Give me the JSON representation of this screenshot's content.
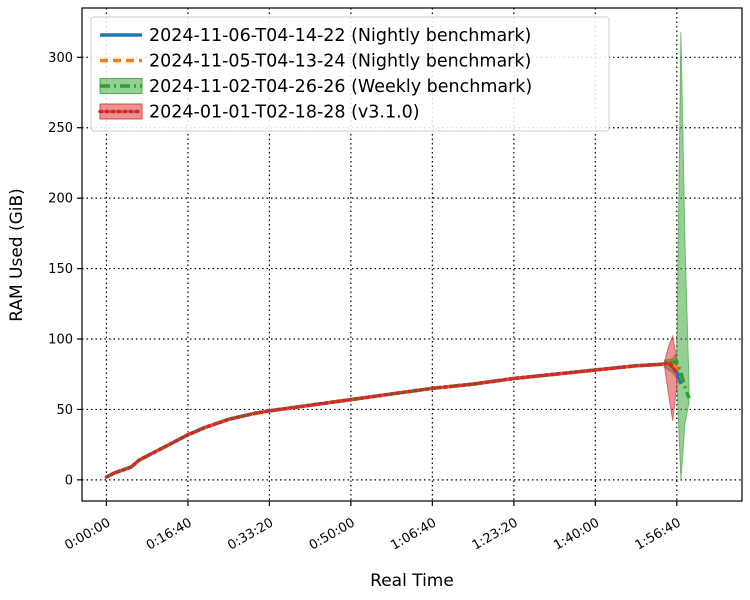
{
  "chart_data": {
    "type": "line",
    "title": "",
    "xlabel": "Real Time",
    "ylabel": "RAM Used (GiB)",
    "x_unit": "elapsed time (h:mm:ss)",
    "xlim": [
      "-0:05:00",
      "2:10:00"
    ],
    "ylim": [
      -15,
      335
    ],
    "x_ticks": [
      "0:00:00",
      "0:16:40",
      "0:33:20",
      "0:50:00",
      "1:06:40",
      "1:23:20",
      "1:40:00",
      "1:56:40"
    ],
    "y_ticks": [
      0,
      50,
      100,
      150,
      200,
      250,
      300
    ],
    "grid": true,
    "legend_position": "top-left",
    "series": [
      {
        "name": "2024-11-06-T04-14-22 (Nightly benchmark)",
        "color": "#1f77b4",
        "style": "solid",
        "x": [
          "0:00:00",
          "0:01:40",
          "0:05:00",
          "0:06:40",
          "0:08:20",
          "0:10:00",
          "0:13:20",
          "0:16:40",
          "0:20:00",
          "0:25:00",
          "0:30:00",
          "0:33:20",
          "0:41:40",
          "0:50:00",
          "0:58:20",
          "1:06:40",
          "1:15:00",
          "1:23:20",
          "1:31:40",
          "1:40:00",
          "1:48:20",
          "1:53:20",
          "1:55:00",
          "1:56:40",
          "1:57:30"
        ],
        "y": [
          2,
          5,
          9,
          14,
          17,
          20,
          26,
          32,
          37,
          43,
          47,
          49,
          53,
          57,
          61,
          65,
          68,
          72,
          75,
          78,
          81,
          82,
          83,
          77,
          68
        ]
      },
      {
        "name": "2024-11-05-T04-13-24 (Nightly benchmark)",
        "color": "#ff7f0e",
        "style": "dashed",
        "x": [
          "0:00:00",
          "0:01:40",
          "0:05:00",
          "0:06:40",
          "0:08:20",
          "0:10:00",
          "0:13:20",
          "0:16:40",
          "0:20:00",
          "0:25:00",
          "0:30:00",
          "0:33:20",
          "0:41:40",
          "0:50:00",
          "0:58:20",
          "1:06:40",
          "1:15:00",
          "1:23:20",
          "1:31:40",
          "1:40:00",
          "1:48:20",
          "1:53:20",
          "1:55:00",
          "1:56:40",
          "1:58:00"
        ],
        "y": [
          2,
          5,
          9,
          14,
          17,
          20,
          26,
          32,
          37,
          43,
          47,
          49,
          53,
          57,
          61,
          65,
          68,
          72,
          75,
          78,
          81,
          82,
          83,
          80,
          70
        ]
      },
      {
        "name": "2024-11-02-T04-26-26 (Weekly benchmark)",
        "color": "#2ca02c",
        "style": "dashdot",
        "x": [
          "0:00:00",
          "0:01:40",
          "0:05:00",
          "0:06:40",
          "0:08:20",
          "0:10:00",
          "0:13:20",
          "0:16:40",
          "0:20:00",
          "0:25:00",
          "0:30:00",
          "0:33:20",
          "0:41:40",
          "0:50:00",
          "0:58:20",
          "1:06:40",
          "1:15:00",
          "1:23:20",
          "1:31:40",
          "1:40:00",
          "1:48:20",
          "1:53:20",
          "1:55:00",
          "1:56:40",
          "1:57:30",
          "1:58:20",
          "1:59:10"
        ],
        "y": [
          2,
          5,
          9,
          14,
          17,
          20,
          26,
          32,
          37,
          43,
          47,
          49,
          53,
          57,
          61,
          65,
          68,
          72,
          75,
          78,
          81,
          82,
          83,
          84,
          76,
          66,
          58
        ],
        "band_x": [
          "1:54:10",
          "1:55:50",
          "1:56:40",
          "1:57:30",
          "1:58:20",
          "1:59:10"
        ],
        "band_upper": [
          85,
          86,
          90,
          318,
          170,
          68
        ],
        "band_lower": [
          80,
          76,
          72,
          0,
          40,
          55
        ]
      },
      {
        "name": "2024-01-01-T02-18-28 (v3.1.0)",
        "color": "#d62728",
        "style": "dotted",
        "x": [
          "0:00:00",
          "0:01:40",
          "0:05:00",
          "0:06:40",
          "0:08:20",
          "0:10:00",
          "0:13:20",
          "0:16:40",
          "0:20:00",
          "0:25:00",
          "0:30:00",
          "0:33:20",
          "0:41:40",
          "0:50:00",
          "0:58:20",
          "1:06:40",
          "1:15:00",
          "1:23:20",
          "1:31:40",
          "1:40:00",
          "1:48:20",
          "1:53:20",
          "1:55:00",
          "1:55:50",
          "1:56:40"
        ],
        "y": [
          2,
          5,
          9,
          14,
          17,
          20,
          26,
          32,
          37,
          43,
          47,
          49,
          53,
          57,
          61,
          65,
          68,
          72,
          75,
          78,
          81,
          82,
          83,
          80,
          76
        ],
        "band_x": [
          "1:54:10",
          "1:55:00",
          "1:55:50",
          "1:56:40"
        ],
        "band_upper": [
          84,
          95,
          102,
          86
        ],
        "band_lower": [
          80,
          60,
          42,
          66
        ]
      }
    ]
  }
}
